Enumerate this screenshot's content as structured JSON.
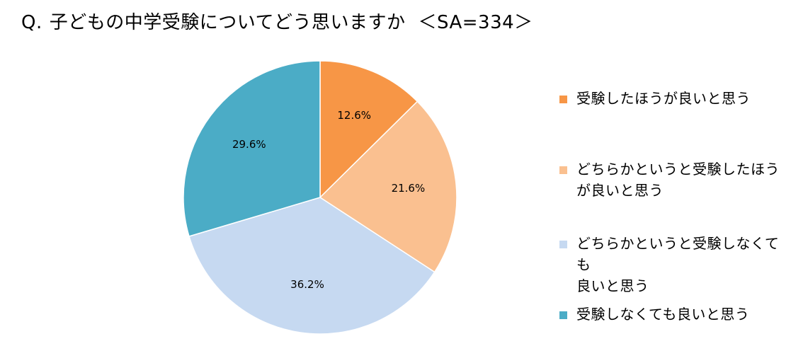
{
  "title": {
    "prefix": "Q.",
    "question": "子どもの中学受験についてどう思いますか",
    "sample": "＜SA=334＞"
  },
  "chart_data": {
    "type": "pie",
    "title": "Q. 子どもの中学受験についてどう思いますか ＜SA=334＞",
    "categories": [
      "受験したほうが良いと思う",
      "どちらかというと受験したほうが良いと思う",
      "どちらかというと受験しなくても良いと思う",
      "受験しなくても良いと思う"
    ],
    "values": [
      12.6,
      21.6,
      36.2,
      29.6
    ],
    "data_labels": [
      "12.6%",
      "21.6%",
      "36.2%",
      "29.6%"
    ],
    "colors": [
      "#F79646",
      "#FAC090",
      "#C6D9F1",
      "#4BACC6"
    ],
    "start_angle": "12 o'clock",
    "direction": "clockwise",
    "legend_position": "right"
  },
  "legend": [
    {
      "line1": "受験したほうが良いと思う",
      "line2": ""
    },
    {
      "line1": "どちらかというと受験したほう",
      "line2": "が良いと思う"
    },
    {
      "line1": "どちらかというと受験しなくても",
      "line2": "良いと思う"
    },
    {
      "line1": "受験しなくても良いと思う",
      "line2": ""
    }
  ]
}
